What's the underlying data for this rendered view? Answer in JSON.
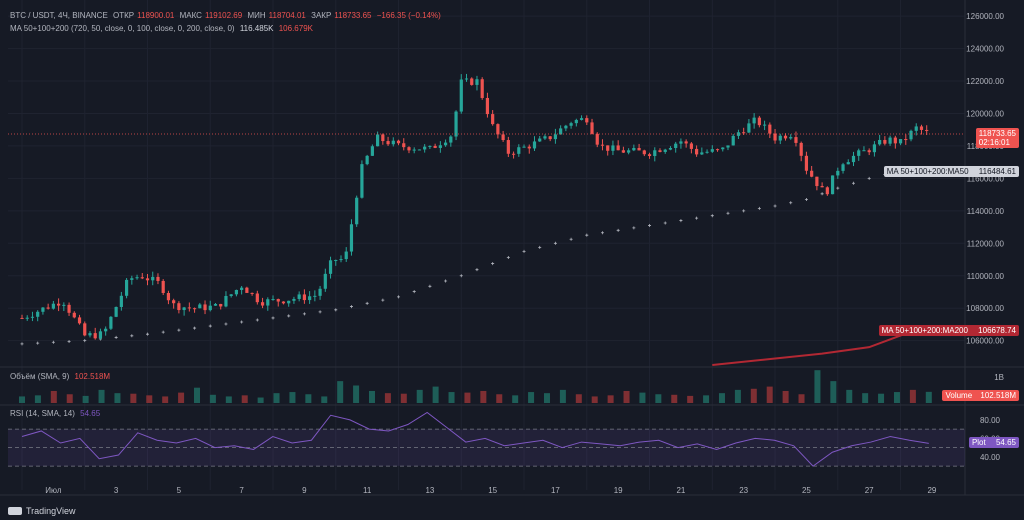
{
  "header": {
    "symbol": "BTC / USDT, 4Ч, BINANCE",
    "open_label": "ОТКР",
    "open_value": "118900.01",
    "high_label": "МАКС",
    "high_value": "119102.69",
    "low_label": "МИН",
    "low_value": "118704.01",
    "close_label": "ЗАКР",
    "close_value": "118733.65",
    "change": "−166.35 (−0.14%)",
    "ma_label": "MA 50+100+200 (720, 50, close, 0, 100, close, 0, 200, close, 0)",
    "ma_value1": "116.485K",
    "ma_value2": "106.679K",
    "volume_label": "Объём (SMA, 9)",
    "volume_value": "102.518M",
    "rsi_label": "RSI (14, SMA, 14)",
    "rsi_value": "54.65"
  },
  "price_tags": {
    "last_price": "118733.65",
    "countdown": "02:16:01",
    "ma50_label": "MA 50+100+200:MA50",
    "ma50_value": "116484.61",
    "ma200_label": "MA 50+100+200:MA200",
    "ma200_value": "106678.74",
    "volume_tag_label": "Volume",
    "volume_tag_value": "102.518M",
    "rsi_tag_label": "Plot",
    "rsi_tag_value": "54.65"
  },
  "branding": {
    "name": "TradingView"
  },
  "colors": {
    "up": "#26a69a",
    "down": "#ef5350",
    "rsi_line": "#7e57c2",
    "ma50": "#b2b5be",
    "ma200": "#b22833"
  },
  "chart_data": {
    "type": "candlestick",
    "price_axis": {
      "ticks": [
        "126000.00",
        "124000.00",
        "122000.00",
        "120000.00",
        "118000.00",
        "116000.00",
        "114000.00",
        "112000.00",
        "110000.00",
        "108000.00",
        "106000.00"
      ],
      "range": [
        104500,
        126500
      ]
    },
    "x_axis": {
      "tick_labels": [
        "Июл",
        "3",
        "5",
        "7",
        "9",
        "11",
        "13",
        "15",
        "17",
        "19",
        "21",
        "23",
        "25",
        "27",
        "29"
      ],
      "day_range": [
        0,
        29
      ]
    },
    "price_path": [
      [
        0.0,
        107400
      ],
      [
        1.3,
        108500
      ],
      [
        2.0,
        106300
      ],
      [
        2.6,
        106400
      ],
      [
        3.4,
        109800
      ],
      [
        3.8,
        110000
      ],
      [
        4.4,
        109500
      ],
      [
        4.8,
        108200
      ],
      [
        5.4,
        108000
      ],
      [
        6.2,
        108100
      ],
      [
        7.0,
        109400
      ],
      [
        7.6,
        108400
      ],
      [
        8.3,
        108500
      ],
      [
        9.4,
        108800
      ],
      [
        9.9,
        111000
      ],
      [
        10.3,
        111000
      ],
      [
        10.8,
        116500
      ],
      [
        11.3,
        118500
      ],
      [
        12.0,
        118000
      ],
      [
        13.0,
        117800
      ],
      [
        13.7,
        118700
      ],
      [
        14.0,
        121900
      ],
      [
        14.5,
        122000
      ],
      [
        15.0,
        119200
      ],
      [
        15.5,
        117600
      ],
      [
        16.0,
        117900
      ],
      [
        16.8,
        118500
      ],
      [
        17.5,
        119500
      ],
      [
        18.0,
        119700
      ],
      [
        18.4,
        118000
      ],
      [
        19.0,
        117700
      ],
      [
        20.0,
        117600
      ],
      [
        21.0,
        118300
      ],
      [
        21.5,
        117600
      ],
      [
        22.3,
        117700
      ],
      [
        22.8,
        118800
      ],
      [
        23.4,
        119600
      ],
      [
        24.0,
        118500
      ],
      [
        24.6,
        118800
      ],
      [
        25.0,
        116600
      ],
      [
        25.6,
        115000
      ],
      [
        26.1,
        117000
      ],
      [
        27.0,
        117800
      ],
      [
        27.6,
        118400
      ],
      [
        28.0,
        118200
      ],
      [
        28.5,
        119100
      ],
      [
        28.9,
        118750
      ]
    ],
    "ma50": [
      [
        0.0,
        105800
      ],
      [
        2.0,
        106000
      ],
      [
        4.0,
        106400
      ],
      [
        6.0,
        106900
      ],
      [
        8.0,
        107400
      ],
      [
        10.0,
        107900
      ],
      [
        12.0,
        108700
      ],
      [
        14.0,
        110000
      ],
      [
        16.0,
        111500
      ],
      [
        18.0,
        112500
      ],
      [
        20.0,
        113100
      ],
      [
        22.0,
        113700
      ],
      [
        24.0,
        114300
      ],
      [
        25.0,
        114700
      ],
      [
        26.0,
        115400
      ],
      [
        27.0,
        116000
      ],
      [
        28.0,
        116484
      ]
    ],
    "ma200": [
      [
        22.0,
        104500
      ],
      [
        25.5,
        105200
      ],
      [
        27.0,
        105600
      ],
      [
        28.5,
        106679
      ]
    ],
    "volume": {
      "values_millions": [
        60,
        70,
        110,
        80,
        65,
        120,
        90,
        85,
        70,
        60,
        95,
        140,
        75,
        60,
        70,
        50,
        90,
        100,
        80,
        60,
        200,
        160,
        110,
        90,
        85,
        120,
        150,
        100,
        95,
        110,
        80,
        70,
        100,
        90,
        120,
        80,
        60,
        70,
        110,
        95,
        80,
        75,
        65,
        70,
        90,
        120,
        130,
        150,
        110,
        80,
        300,
        200,
        120,
        90,
        85,
        100,
        120,
        102
      ],
      "axis_label": "1B"
    },
    "rsi": {
      "values": [
        62,
        68,
        55,
        60,
        38,
        42,
        66,
        58,
        55,
        60,
        50,
        52,
        48,
        62,
        55,
        58,
        85,
        80,
        70,
        68,
        75,
        88,
        72,
        56,
        60,
        52,
        55,
        58,
        50,
        56,
        54,
        52,
        56,
        58,
        50,
        54,
        48,
        55,
        60,
        58,
        52,
        30,
        45,
        52,
        56,
        62,
        58,
        54.65
      ],
      "levels": [
        70,
        50,
        30
      ],
      "ticks": [
        "80.00",
        "60.00",
        "40.00"
      ],
      "range": [
        15,
        95
      ]
    }
  }
}
